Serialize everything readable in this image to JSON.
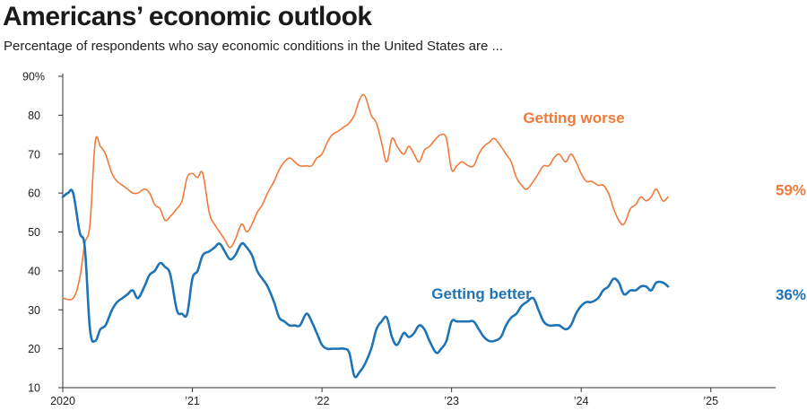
{
  "title": "Americans’ economic outlook",
  "subtitle": "Percentage of respondents who say economic conditions in the United States are ...",
  "colors": {
    "worse": "#f07a3a",
    "better": "#1f74b5",
    "axis": "#333333"
  },
  "chart_data": {
    "type": "line",
    "title": "Americans’ economic outlook",
    "subtitle": "Percentage of respondents who say economic conditions in the United States are ...",
    "xlabel": "",
    "ylabel": "",
    "xlim": [
      2020.0,
      2025.5
    ],
    "ylim": [
      10,
      90
    ],
    "y_ticks": [
      {
        "value": 90,
        "label": "90%"
      },
      {
        "value": 80,
        "label": "80"
      },
      {
        "value": 70,
        "label": "70"
      },
      {
        "value": 60,
        "label": "60"
      },
      {
        "value": 50,
        "label": "50"
      },
      {
        "value": 40,
        "label": "40"
      },
      {
        "value": 30,
        "label": "30"
      },
      {
        "value": 20,
        "label": "20"
      },
      {
        "value": 10,
        "label": "10"
      }
    ],
    "x_ticks": [
      {
        "value": 2020,
        "label": "2020"
      },
      {
        "value": 2021,
        "label": "’21"
      },
      {
        "value": 2022,
        "label": "’22"
      },
      {
        "value": 2023,
        "label": "’23"
      },
      {
        "value": 2024,
        "label": "’24"
      },
      {
        "value": 2025,
        "label": "’25"
      }
    ],
    "grid": false,
    "series": [
      {
        "name": "Getting worse",
        "label": "Getting worse",
        "end_label": "59%",
        "color_key": "worse",
        "points": [
          [
            2020.0,
            33
          ],
          [
            2020.08,
            33
          ],
          [
            2020.13,
            38
          ],
          [
            2020.17,
            47
          ],
          [
            2020.21,
            52
          ],
          [
            2020.25,
            73
          ],
          [
            2020.29,
            72
          ],
          [
            2020.33,
            70
          ],
          [
            2020.38,
            65
          ],
          [
            2020.42,
            63
          ],
          [
            2020.46,
            62
          ],
          [
            2020.5,
            61
          ],
          [
            2020.54,
            60
          ],
          [
            2020.58,
            60
          ],
          [
            2020.63,
            61
          ],
          [
            2020.67,
            60
          ],
          [
            2020.71,
            57
          ],
          [
            2020.75,
            56
          ],
          [
            2020.79,
            53
          ],
          [
            2020.83,
            54
          ],
          [
            2020.88,
            56
          ],
          [
            2020.92,
            58
          ],
          [
            2020.96,
            64
          ],
          [
            2021.0,
            65
          ],
          [
            2021.04,
            64
          ],
          [
            2021.08,
            65
          ],
          [
            2021.13,
            55
          ],
          [
            2021.17,
            52
          ],
          [
            2021.21,
            50
          ],
          [
            2021.25,
            48
          ],
          [
            2021.29,
            46
          ],
          [
            2021.33,
            48
          ],
          [
            2021.38,
            52
          ],
          [
            2021.42,
            50
          ],
          [
            2021.46,
            52
          ],
          [
            2021.5,
            55
          ],
          [
            2021.54,
            57
          ],
          [
            2021.58,
            60
          ],
          [
            2021.63,
            63
          ],
          [
            2021.67,
            66
          ],
          [
            2021.71,
            68
          ],
          [
            2021.75,
            69
          ],
          [
            2021.79,
            68
          ],
          [
            2021.83,
            67
          ],
          [
            2021.88,
            67
          ],
          [
            2021.92,
            67
          ],
          [
            2021.96,
            69
          ],
          [
            2022.0,
            70
          ],
          [
            2022.04,
            73
          ],
          [
            2022.08,
            75
          ],
          [
            2022.13,
            76
          ],
          [
            2022.17,
            77
          ],
          [
            2022.21,
            78
          ],
          [
            2022.25,
            80
          ],
          [
            2022.29,
            84
          ],
          [
            2022.33,
            85
          ],
          [
            2022.38,
            80
          ],
          [
            2022.42,
            78
          ],
          [
            2022.46,
            73
          ],
          [
            2022.5,
            68
          ],
          [
            2022.54,
            74
          ],
          [
            2022.58,
            72
          ],
          [
            2022.63,
            70
          ],
          [
            2022.67,
            72
          ],
          [
            2022.71,
            70
          ],
          [
            2022.75,
            68
          ],
          [
            2022.79,
            71
          ],
          [
            2022.83,
            72
          ],
          [
            2022.88,
            74
          ],
          [
            2022.92,
            75
          ],
          [
            2022.96,
            74
          ],
          [
            2023.0,
            66
          ],
          [
            2023.04,
            67
          ],
          [
            2023.08,
            68
          ],
          [
            2023.13,
            67
          ],
          [
            2023.17,
            67
          ],
          [
            2023.21,
            70
          ],
          [
            2023.25,
            72
          ],
          [
            2023.29,
            73
          ],
          [
            2023.33,
            74
          ],
          [
            2023.38,
            72
          ],
          [
            2023.42,
            70
          ],
          [
            2023.46,
            68
          ],
          [
            2023.5,
            64
          ],
          [
            2023.54,
            62
          ],
          [
            2023.58,
            61
          ],
          [
            2023.63,
            63
          ],
          [
            2023.67,
            65
          ],
          [
            2023.71,
            67
          ],
          [
            2023.75,
            67
          ],
          [
            2023.79,
            69
          ],
          [
            2023.83,
            70
          ],
          [
            2023.88,
            68
          ],
          [
            2023.92,
            70
          ],
          [
            2023.96,
            68
          ],
          [
            2024.0,
            65
          ],
          [
            2024.04,
            63
          ],
          [
            2024.08,
            63
          ],
          [
            2024.13,
            62
          ],
          [
            2024.17,
            62
          ],
          [
            2024.21,
            60
          ],
          [
            2024.25,
            56
          ],
          [
            2024.29,
            53
          ],
          [
            2024.33,
            52
          ],
          [
            2024.38,
            56
          ],
          [
            2024.42,
            57
          ],
          [
            2024.46,
            59
          ],
          [
            2024.5,
            58
          ],
          [
            2024.54,
            59
          ],
          [
            2024.58,
            61
          ],
          [
            2024.63,
            58
          ],
          [
            2024.67,
            59
          ]
        ]
      },
      {
        "name": "Getting better",
        "label": "Getting better",
        "end_label": "36%",
        "color_key": "better",
        "points": [
          [
            2020.0,
            59
          ],
          [
            2020.04,
            60
          ],
          [
            2020.08,
            60
          ],
          [
            2020.13,
            50
          ],
          [
            2020.17,
            46
          ],
          [
            2020.21,
            25
          ],
          [
            2020.25,
            22
          ],
          [
            2020.29,
            25
          ],
          [
            2020.33,
            26
          ],
          [
            2020.38,
            30
          ],
          [
            2020.42,
            32
          ],
          [
            2020.46,
            33
          ],
          [
            2020.5,
            34
          ],
          [
            2020.54,
            35
          ],
          [
            2020.58,
            33
          ],
          [
            2020.63,
            36
          ],
          [
            2020.67,
            39
          ],
          [
            2020.71,
            40
          ],
          [
            2020.75,
            42
          ],
          [
            2020.79,
            41
          ],
          [
            2020.83,
            39
          ],
          [
            2020.88,
            30
          ],
          [
            2020.92,
            29
          ],
          [
            2020.96,
            29
          ],
          [
            2021.0,
            38
          ],
          [
            2021.04,
            40
          ],
          [
            2021.08,
            44
          ],
          [
            2021.13,
            45
          ],
          [
            2021.17,
            46
          ],
          [
            2021.21,
            47
          ],
          [
            2021.25,
            45
          ],
          [
            2021.29,
            43
          ],
          [
            2021.33,
            44
          ],
          [
            2021.38,
            47
          ],
          [
            2021.42,
            46
          ],
          [
            2021.46,
            44
          ],
          [
            2021.5,
            40
          ],
          [
            2021.54,
            38
          ],
          [
            2021.58,
            36
          ],
          [
            2021.63,
            32
          ],
          [
            2021.67,
            28
          ],
          [
            2021.71,
            27
          ],
          [
            2021.75,
            26
          ],
          [
            2021.79,
            26
          ],
          [
            2021.83,
            26
          ],
          [
            2021.88,
            29
          ],
          [
            2021.92,
            27
          ],
          [
            2021.96,
            24
          ],
          [
            2022.0,
            21
          ],
          [
            2022.04,
            20
          ],
          [
            2022.08,
            20
          ],
          [
            2022.13,
            20
          ],
          [
            2022.17,
            20
          ],
          [
            2022.21,
            19
          ],
          [
            2022.25,
            13
          ],
          [
            2022.29,
            14
          ],
          [
            2022.33,
            16
          ],
          [
            2022.38,
            20
          ],
          [
            2022.42,
            25
          ],
          [
            2022.46,
            27
          ],
          [
            2022.5,
            28
          ],
          [
            2022.54,
            23
          ],
          [
            2022.58,
            21
          ],
          [
            2022.63,
            24
          ],
          [
            2022.67,
            23
          ],
          [
            2022.71,
            24
          ],
          [
            2022.75,
            26
          ],
          [
            2022.79,
            25
          ],
          [
            2022.83,
            22
          ],
          [
            2022.88,
            19
          ],
          [
            2022.92,
            20
          ],
          [
            2022.96,
            22
          ],
          [
            2023.0,
            27
          ],
          [
            2023.04,
            27
          ],
          [
            2023.08,
            27
          ],
          [
            2023.13,
            27
          ],
          [
            2023.17,
            27
          ],
          [
            2023.21,
            25
          ],
          [
            2023.25,
            23
          ],
          [
            2023.29,
            22
          ],
          [
            2023.33,
            22
          ],
          [
            2023.38,
            23
          ],
          [
            2023.42,
            26
          ],
          [
            2023.46,
            28
          ],
          [
            2023.5,
            29
          ],
          [
            2023.54,
            31
          ],
          [
            2023.58,
            32
          ],
          [
            2023.63,
            33
          ],
          [
            2023.67,
            30
          ],
          [
            2023.71,
            27
          ],
          [
            2023.75,
            26
          ],
          [
            2023.79,
            26
          ],
          [
            2023.83,
            26
          ],
          [
            2023.88,
            25
          ],
          [
            2023.92,
            26
          ],
          [
            2023.96,
            29
          ],
          [
            2024.0,
            31
          ],
          [
            2024.04,
            32
          ],
          [
            2024.08,
            32
          ],
          [
            2024.13,
            33
          ],
          [
            2024.17,
            35
          ],
          [
            2024.21,
            36
          ],
          [
            2024.25,
            38
          ],
          [
            2024.29,
            37
          ],
          [
            2024.33,
            34
          ],
          [
            2024.38,
            35
          ],
          [
            2024.42,
            35
          ],
          [
            2024.46,
            36
          ],
          [
            2024.5,
            36
          ],
          [
            2024.54,
            35
          ],
          [
            2024.58,
            37
          ],
          [
            2024.63,
            37
          ],
          [
            2024.67,
            36
          ]
        ]
      }
    ],
    "annotations": [
      {
        "series": "Getting worse",
        "text": "Getting worse"
      },
      {
        "series": "Getting better",
        "text": "Getting better"
      }
    ]
  }
}
